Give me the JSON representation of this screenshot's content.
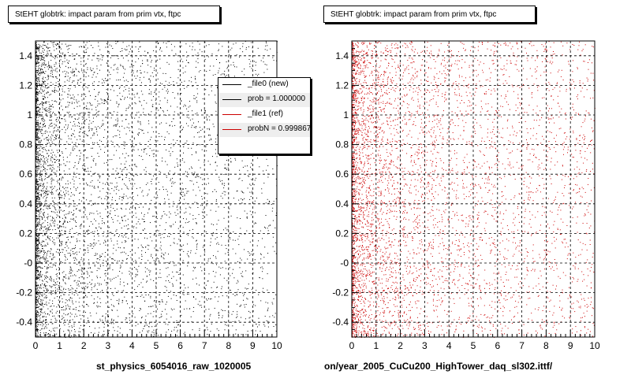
{
  "chart_data": [
    {
      "type": "scatter",
      "title": "StEHT globtrk: impact param from prim vtx, ftpc",
      "xlabel": "st_physics_6054016_raw_1020005",
      "ylabel": "",
      "xlim": [
        0,
        10
      ],
      "ylim": [
        -0.5,
        1.5
      ],
      "x_ticks": [
        0,
        1,
        2,
        3,
        4,
        5,
        6,
        7,
        8,
        9,
        10
      ],
      "y_ticks": [
        -0.4,
        -0.2,
        0,
        0.2,
        0.4,
        0.6,
        0.8,
        1,
        1.2,
        1.4
      ],
      "y_tick_labels": [
        "-0.4",
        "-0.2",
        "-0",
        "0.2",
        "0.4",
        "0.6",
        "0.8",
        "1",
        "1.2",
        "1.4"
      ],
      "grid": true,
      "series": [
        {
          "name": "_file0 (new)",
          "color": "#000000",
          "density_profile": "dense near x=0-1, falling with x"
        }
      ],
      "legend": {
        "placement": "top-right",
        "entries": [
          {
            "label": "_file0 (new)",
            "color": "#000000"
          },
          {
            "label": "prob = 1.000000",
            "color": "#000000"
          },
          {
            "label": "_file1 (ref)",
            "color": "#cc0000"
          },
          {
            "label": "probN = 0.999867",
            "color": "#cc0000"
          }
        ]
      }
    },
    {
      "type": "scatter",
      "title": "StEHT globtrk: impact param from prim vtx, ftpc",
      "xlabel": "on/year_2005_CuCu200_HighTower_daq_sl302.ittf/",
      "ylabel": "",
      "xlim": [
        0,
        10
      ],
      "ylim": [
        -0.5,
        1.5
      ],
      "x_ticks": [
        0,
        1,
        2,
        3,
        4,
        5,
        6,
        7,
        8,
        9,
        10
      ],
      "y_ticks": [
        -0.4,
        -0.2,
        0,
        0.2,
        0.4,
        0.6,
        0.8,
        1,
        1.2,
        1.4
      ],
      "y_tick_labels": [
        "-0.4",
        "-0.2",
        "-0",
        "0.2",
        "0.4",
        "0.6",
        "0.8",
        "1",
        "1.2",
        "1.4"
      ],
      "grid": true,
      "series": [
        {
          "name": "_file1 (ref)",
          "color": "#cc0000",
          "density_profile": "dense near x=0-1, falling with x"
        }
      ]
    }
  ]
}
